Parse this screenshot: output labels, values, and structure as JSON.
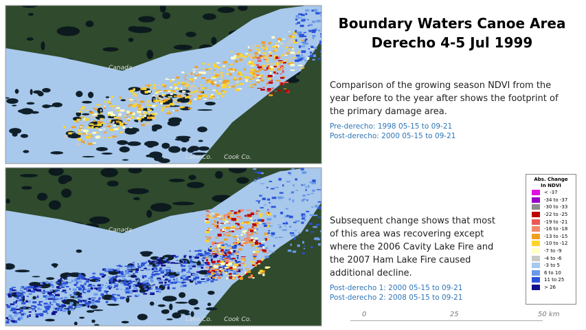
{
  "title": [
    "Boundary Waters Canoe Area",
    "Derecho 4-5 Jul 1999"
  ],
  "sections": [
    {
      "text": "Comparison of the growing season NDVI from the year before to the year after shows the footprint of the primary damage area.",
      "periods": [
        "Pre-derecho: 1998 05-15 to 09-21",
        "Post-derecho: 2000 05-15 to 09-21"
      ]
    },
    {
      "text": "Subsequent change shows that most of this area was recovering except where the 2006 Cavity Lake Fire and the 2007 Ham Lake Fire caused additional decline.",
      "periods": [
        "Post-derecho 1: 2000 05-15 to 09-21",
        "Post-derecho 2: 2008 05-15 to 09-21"
      ]
    }
  ],
  "maps": [
    {
      "labels": [
        "Canada",
        "Lake Co.",
        "Cook Co."
      ]
    },
    {
      "labels": [
        "Canada",
        "Lake Co.",
        "Cook Co."
      ]
    }
  ],
  "legend": {
    "title": [
      "Abs. Change",
      "In NDVI"
    ],
    "items": [
      {
        "label": "< -37",
        "color": "#e010e0"
      },
      {
        "label": "-34 to -37",
        "color": "#9a00c8"
      },
      {
        "label": "-30 to -33",
        "color": "#8c8c8c"
      },
      {
        "label": "-22 to -25",
        "color": "#c00000"
      },
      {
        "label": "-19 to -21",
        "color": "#e85858"
      },
      {
        "label": "-16 to -18",
        "color": "#f08a68"
      },
      {
        "label": "-13 to -15",
        "color": "#f0a020"
      },
      {
        "label": "-10 to -12",
        "color": "#ffd42a"
      },
      {
        "label": "-7 to -9",
        "color": "#ffffc8"
      },
      {
        "label": "-4 to -6",
        "color": "#c8c8c8"
      },
      {
        "label": "-3 to 5",
        "color": "#a8c8ec"
      },
      {
        "label": "6 to 10",
        "color": "#6a9ae8"
      },
      {
        "label": "11 to 25",
        "color": "#2a52d8"
      },
      {
        "label": "> 26",
        "color": "#10108c"
      }
    ]
  },
  "scale_bar": [
    "0",
    "25",
    "50 km"
  ]
}
